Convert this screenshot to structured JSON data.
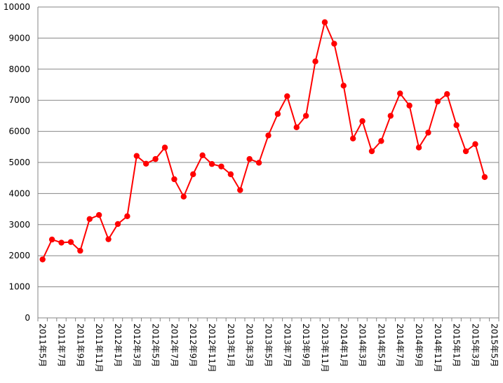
{
  "chart_data": {
    "type": "line",
    "title": "",
    "xlabel": "",
    "ylabel": "",
    "ylim": [
      0,
      10000
    ],
    "y_ticks": [
      0,
      1000,
      2000,
      3000,
      4000,
      5000,
      6000,
      7000,
      8000,
      9000,
      10000
    ],
    "grid": "horizontal",
    "legend": "none",
    "line_color": "#ff0000",
    "marker": "circle",
    "x": [
      "2011年5月",
      "2011年6月",
      "2011年7月",
      "2011年8月",
      "2011年9月",
      "2011年10月",
      "2011年11月",
      "2011年12月",
      "2012年1月",
      "2012年2月",
      "2012年3月",
      "2012年4月",
      "2012年5月",
      "2012年6月",
      "2012年7月",
      "2012年8月",
      "2012年9月",
      "2012年10月",
      "2012年11月",
      "2012年12月",
      "2013年1月",
      "2013年2月",
      "2013年3月",
      "2013年4月",
      "2013年5月",
      "2013年6月",
      "2013年7月",
      "2013年8月",
      "2013年9月",
      "2013年10月",
      "2013年11月",
      "2013年12月",
      "2014年1月",
      "2014年2月",
      "2014年3月",
      "2014年4月",
      "2014年5月",
      "2014年6月",
      "2014年7月",
      "2014年8月",
      "2014年9月",
      "2014年10月",
      "2014年11月",
      "2014年12月",
      "2015年1月",
      "2015年2月",
      "2015年3月",
      "2015年4月"
    ],
    "x_tick_labels": [
      "2011年5月",
      "2011年7月",
      "2011年9月",
      "2011年11月",
      "2012年1月",
      "2012年3月",
      "2012年5月",
      "2012年7月",
      "2012年9月",
      "2012年11月",
      "2013年1月",
      "2013年3月",
      "2013年5月",
      "2013年7月",
      "2013年9月",
      "2013年11月",
      "2014年1月",
      "2014年3月",
      "2014年5月",
      "2014年7月",
      "2014年9月",
      "2014年11月",
      "2015年1月",
      "2015年3月",
      "2015年5月"
    ],
    "series": [
      {
        "values": [
          1880,
          2520,
          2420,
          2440,
          2160,
          3180,
          3310,
          2530,
          3020,
          3270,
          5210,
          4960,
          5110,
          5480,
          4460,
          3900,
          4620,
          5230,
          4950,
          4870,
          4620,
          4110,
          5110,
          4990,
          5870,
          6560,
          7130,
          6130,
          6500,
          8250,
          9510,
          8820,
          7470,
          5770,
          6330,
          5360,
          5690,
          6500,
          7220,
          6830,
          5480,
          5960,
          6960,
          7200,
          6200,
          5360,
          5590,
          4530
        ]
      }
    ]
  }
}
